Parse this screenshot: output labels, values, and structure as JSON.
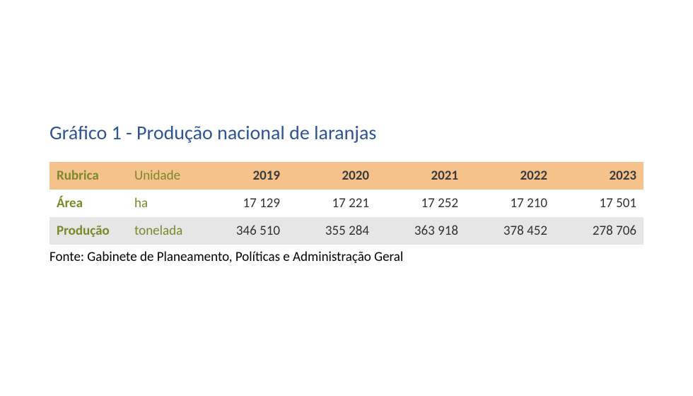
{
  "title": {
    "text": "Gráfico 1 - Produção nacional de laranjas",
    "color": "#2f5496",
    "fontsize": 28
  },
  "table": {
    "type": "table",
    "header_bg": "#f6c28b",
    "row_colors": [
      "#ffffff",
      "#e6e6e6"
    ],
    "label_color": "#7a8a2a",
    "unit_color": "#7a8a2a",
    "header_text_color": "#7a8a2a",
    "year_header_color": "#3b3b3b",
    "value_color": "#333333",
    "columns": {
      "rubrica": "Rubrica",
      "unidade": "Unidade",
      "years": [
        "2019",
        "2020",
        "2021",
        "2022",
        "2023"
      ]
    },
    "rows": [
      {
        "label": "Área",
        "unit": "ha",
        "values": [
          "17 129",
          "17 221",
          "17 252",
          "17 210",
          "17 501"
        ]
      },
      {
        "label": "Produção",
        "unit": "tonelada",
        "values": [
          "346 510",
          "355 284",
          "363 918",
          "378 452",
          "278 706"
        ]
      }
    ]
  },
  "source": {
    "text": "Fonte: Gabinete de Planeamento, Políticas e Administração Geral",
    "color": "#000000"
  }
}
